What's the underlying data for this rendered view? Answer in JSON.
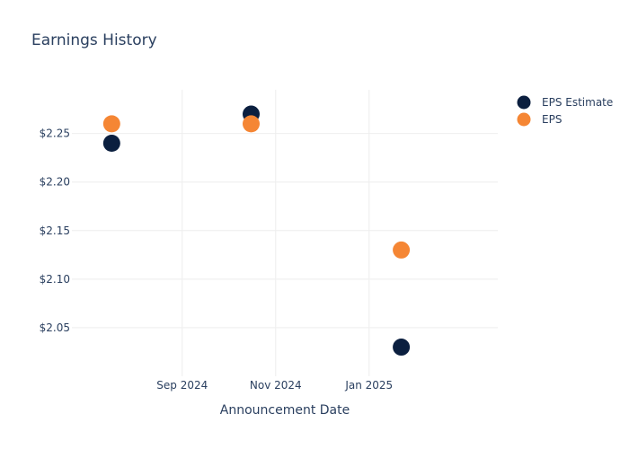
{
  "chart_data": {
    "type": "scatter",
    "title": "Earnings History",
    "xlabel": "Announcement Date",
    "ylabel": "",
    "x_ticks": [
      "Sep 2024",
      "Nov 2024",
      "Jan 2025"
    ],
    "y_ticks": [
      "$2.05",
      "$2.10",
      "$2.15",
      "$2.20",
      "$2.25"
    ],
    "y_tick_values": [
      2.05,
      2.1,
      2.15,
      2.2,
      2.25
    ],
    "ylim": [
      2.0,
      2.295
    ],
    "xlim": [
      "2024-06-21",
      "2025-03-26"
    ],
    "x_tick_dates": [
      "2024-09-01",
      "2024-11-01",
      "2025-01-01"
    ],
    "grid": true,
    "legend_position": "top-right",
    "series": [
      {
        "name": "EPS Estimate",
        "color": "#0b1f3f",
        "points": [
          {
            "x": "2024-07-17",
            "y": 2.24
          },
          {
            "x": "2024-10-16",
            "y": 2.27
          },
          {
            "x": "2025-01-22",
            "y": 2.03
          }
        ]
      },
      {
        "name": "EPS",
        "color": "#f58634",
        "points": [
          {
            "x": "2024-07-17",
            "y": 2.26
          },
          {
            "x": "2024-10-16",
            "y": 2.26
          },
          {
            "x": "2025-01-22",
            "y": 2.13
          }
        ]
      }
    ]
  }
}
